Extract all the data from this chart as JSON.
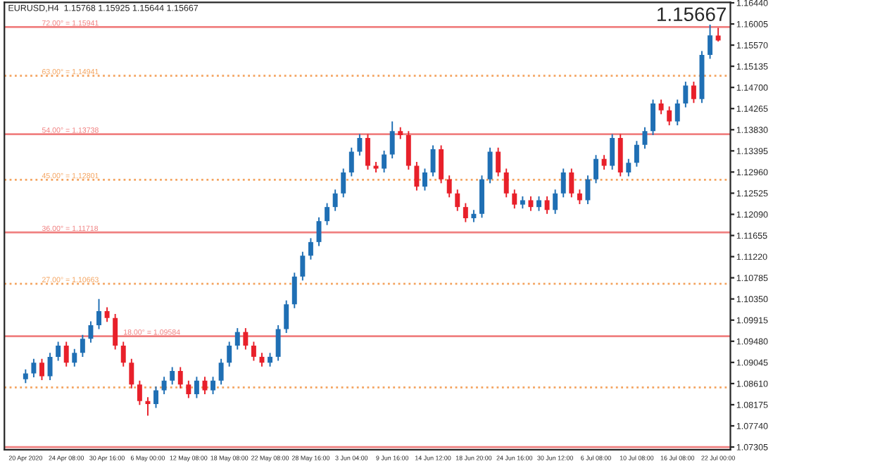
{
  "chart_data": {
    "type": "candlestick",
    "title": "EURUSD,H4  1.15768 1.15925 1.15644 1.15667",
    "annotations": [
      "1.15667"
    ],
    "categories": [
      "20 Apr 2020",
      null,
      null,
      null,
      null,
      "24 Apr 08:00",
      null,
      null,
      null,
      null,
      "30 Apr 16:00",
      null,
      null,
      null,
      null,
      "6 May 00:00",
      null,
      null,
      null,
      null,
      "12 May 08:00",
      null,
      null,
      null,
      null,
      "18 May 08:00",
      null,
      null,
      null,
      null,
      "22 May 08:00",
      null,
      null,
      null,
      null,
      "28 May 16:00",
      null,
      null,
      null,
      null,
      "3 Jun 04:00",
      null,
      null,
      null,
      null,
      "9 Jun 16:00",
      null,
      null,
      null,
      null,
      "14 Jun 12:00",
      null,
      null,
      null,
      null,
      "18 Jun 20:00",
      null,
      null,
      null,
      null,
      "24 Jun 16:00",
      null,
      null,
      null,
      null,
      "30 Jun 12:00",
      null,
      null,
      null,
      null,
      "6 Jul 08:00",
      null,
      null,
      null,
      null,
      "10 Jul 08:00",
      null,
      null,
      null,
      null,
      "16 Jul 08:00",
      null,
      null,
      null,
      null,
      "22 Jul 00:00"
    ],
    "ohlc": [
      [
        1.087,
        1.089,
        1.0862,
        1.0882
      ],
      [
        1.0882,
        1.0912,
        1.0874,
        1.0904
      ],
      [
        1.0904,
        1.0912,
        1.0868,
        1.0876
      ],
      [
        1.0876,
        1.0924,
        1.0868,
        1.0916
      ],
      [
        1.0916,
        1.0947,
        1.0908,
        1.0939
      ],
      [
        1.0939,
        1.0947,
        1.0896,
        1.0904
      ],
      [
        1.0904,
        1.0932,
        1.0896,
        1.0924
      ],
      [
        1.0924,
        1.0961,
        1.0916,
        1.0953
      ],
      [
        1.0953,
        1.0989,
        1.0945,
        1.0981
      ],
      [
        1.0981,
        1.1035,
        1.0973,
        1.101
      ],
      [
        1.101,
        1.1018,
        1.0988,
        1.0996
      ],
      [
        1.0996,
        1.1004,
        1.0931,
        1.0939
      ],
      [
        1.0939,
        1.0947,
        1.0896,
        1.0904
      ],
      [
        1.0904,
        1.0912,
        1.0851,
        1.0859
      ],
      [
        1.0859,
        1.0867,
        1.0817,
        1.0825
      ],
      [
        1.0825,
        1.0833,
        1.0795,
        1.0819
      ],
      [
        1.0819,
        1.0855,
        1.0811,
        1.0847
      ],
      [
        1.0847,
        1.0875,
        1.0839,
        1.0867
      ],
      [
        1.0867,
        1.0895,
        1.0859,
        1.0887
      ],
      [
        1.0887,
        1.0895,
        1.0851,
        1.0859
      ],
      [
        1.0859,
        1.0867,
        1.0831,
        1.0839
      ],
      [
        1.0839,
        1.0875,
        1.0831,
        1.0867
      ],
      [
        1.0867,
        1.0875,
        1.0839,
        1.0847
      ],
      [
        1.0847,
        1.0875,
        1.0839,
        1.0867
      ],
      [
        1.0867,
        1.0912,
        1.0859,
        1.0904
      ],
      [
        1.0904,
        1.0947,
        1.0896,
        1.0939
      ],
      [
        1.0939,
        1.0975,
        1.0931,
        1.0967
      ],
      [
        1.0967,
        1.0975,
        1.0931,
        1.0939
      ],
      [
        1.0939,
        1.0947,
        1.0908,
        1.0916
      ],
      [
        1.0916,
        1.0924,
        1.0896,
        1.0904
      ],
      [
        1.0904,
        1.0924,
        1.0896,
        1.0916
      ],
      [
        1.0916,
        1.0981,
        1.0908,
        1.0973
      ],
      [
        1.0973,
        1.1032,
        1.0965,
        1.1024
      ],
      [
        1.1024,
        1.1089,
        1.1016,
        1.1081
      ],
      [
        1.1081,
        1.1132,
        1.1073,
        1.1124
      ],
      [
        1.1124,
        1.116,
        1.1116,
        1.1152
      ],
      [
        1.1152,
        1.1203,
        1.1144,
        1.1195
      ],
      [
        1.1195,
        1.1232,
        1.1187,
        1.1224
      ],
      [
        1.1224,
        1.126,
        1.1216,
        1.1252
      ],
      [
        1.1252,
        1.1303,
        1.1244,
        1.1295
      ],
      [
        1.1295,
        1.1346,
        1.1287,
        1.1338
      ],
      [
        1.1338,
        1.1374,
        1.133,
        1.1366
      ],
      [
        1.1366,
        1.1374,
        1.1301,
        1.1309
      ],
      [
        1.1309,
        1.1317,
        1.1295,
        1.1303
      ],
      [
        1.1303,
        1.134,
        1.1295,
        1.1332
      ],
      [
        1.1332,
        1.14,
        1.1324,
        1.138
      ],
      [
        1.138,
        1.1388,
        1.1364,
        1.1372
      ],
      [
        1.1372,
        1.138,
        1.1301,
        1.1309
      ],
      [
        1.1309,
        1.1317,
        1.1258,
        1.1266
      ],
      [
        1.1266,
        1.1303,
        1.1258,
        1.1295
      ],
      [
        1.1295,
        1.1351,
        1.1287,
        1.1343
      ],
      [
        1.1343,
        1.1351,
        1.1273,
        1.1281
      ],
      [
        1.1281,
        1.1289,
        1.1244,
        1.1252
      ],
      [
        1.1252,
        1.126,
        1.1216,
        1.1224
      ],
      [
        1.1224,
        1.1232,
        1.1193,
        1.1201
      ],
      [
        1.1201,
        1.1218,
        1.1193,
        1.121
      ],
      [
        1.121,
        1.1289,
        1.1202,
        1.1281
      ],
      [
        1.1281,
        1.1346,
        1.1273,
        1.1338
      ],
      [
        1.1338,
        1.1346,
        1.1287,
        1.1295
      ],
      [
        1.1295,
        1.1303,
        1.1244,
        1.1252
      ],
      [
        1.1252,
        1.126,
        1.1221,
        1.1229
      ],
      [
        1.1229,
        1.1246,
        1.1221,
        1.1238
      ],
      [
        1.1238,
        1.1246,
        1.1216,
        1.1224
      ],
      [
        1.1224,
        1.1246,
        1.1216,
        1.1238
      ],
      [
        1.1238,
        1.1246,
        1.121,
        1.1218
      ],
      [
        1.1218,
        1.126,
        1.121,
        1.1252
      ],
      [
        1.1252,
        1.1303,
        1.1244,
        1.1295
      ],
      [
        1.1295,
        1.1303,
        1.1244,
        1.1252
      ],
      [
        1.1252,
        1.126,
        1.123,
        1.1238
      ],
      [
        1.1238,
        1.1289,
        1.123,
        1.1281
      ],
      [
        1.1281,
        1.1331,
        1.1273,
        1.1323
      ],
      [
        1.1323,
        1.1331,
        1.1301,
        1.1309
      ],
      [
        1.1309,
        1.1374,
        1.1301,
        1.1366
      ],
      [
        1.1366,
        1.1374,
        1.1287,
        1.1295
      ],
      [
        1.1295,
        1.1323,
        1.1287,
        1.1315
      ],
      [
        1.1315,
        1.136,
        1.1307,
        1.1352
      ],
      [
        1.1352,
        1.1388,
        1.1344,
        1.138
      ],
      [
        1.138,
        1.1445,
        1.1372,
        1.1437
      ],
      [
        1.1437,
        1.1445,
        1.1415,
        1.1423
      ],
      [
        1.1423,
        1.1431,
        1.1392,
        1.14
      ],
      [
        1.14,
        1.1445,
        1.1392,
        1.1437
      ],
      [
        1.1437,
        1.1482,
        1.1429,
        1.1474
      ],
      [
        1.1474,
        1.1482,
        1.1438,
        1.1446
      ],
      [
        1.1446,
        1.1545,
        1.1438,
        1.1537
      ],
      [
        1.1537,
        1.1599,
        1.1529,
        1.1577
      ],
      [
        1.15768,
        1.15925,
        1.15644,
        1.15667
      ]
    ],
    "colors": [
      "#1f6fb4",
      "#1f6fb4",
      "#e8202a",
      "#1f6fb4",
      "#1f6fb4",
      "#e8202a",
      "#1f6fb4",
      "#1f6fb4",
      "#1f6fb4",
      "#1f6fb4",
      "#e8202a",
      "#e8202a",
      "#e8202a",
      "#e8202a",
      "#e8202a",
      "#e8202a",
      "#1f6fb4",
      "#1f6fb4",
      "#1f6fb4",
      "#e8202a",
      "#e8202a",
      "#1f6fb4",
      "#e8202a",
      "#1f6fb4",
      "#1f6fb4",
      "#1f6fb4",
      "#1f6fb4",
      "#e8202a",
      "#e8202a",
      "#e8202a",
      "#1f6fb4",
      "#1f6fb4",
      "#1f6fb4",
      "#1f6fb4",
      "#1f6fb4",
      "#1f6fb4",
      "#1f6fb4",
      "#1f6fb4",
      "#1f6fb4",
      "#1f6fb4",
      "#1f6fb4",
      "#1f6fb4",
      "#e8202a",
      "#e8202a",
      "#1f6fb4",
      "#1f6fb4",
      "#e8202a",
      "#e8202a",
      "#e8202a",
      "#1f6fb4",
      "#1f6fb4",
      "#e8202a",
      "#e8202a",
      "#e8202a",
      "#e8202a",
      "#1f6fb4",
      "#1f6fb4",
      "#1f6fb4",
      "#e8202a",
      "#e8202a",
      "#e8202a",
      "#1f6fb4",
      "#e8202a",
      "#1f6fb4",
      "#e8202a",
      "#1f6fb4",
      "#1f6fb4",
      "#e8202a",
      "#e8202a",
      "#1f6fb4",
      "#1f6fb4",
      "#e8202a",
      "#1f6fb4",
      "#e8202a",
      "#1f6fb4",
      "#1f6fb4",
      "#1f6fb4",
      "#1f6fb4",
      "#e8202a",
      "#e8202a",
      "#1f6fb4",
      "#1f6fb4",
      "#e8202a",
      "#1f6fb4",
      "#1f6fb4",
      "#e8202a"
    ],
    "ylim": [
      1.0725,
      1.1645
    ],
    "yticks": [
      1.07305,
      {
        "value": 1.0774,
        "label": "1.07740"
      },
      1.08175,
      {
        "value": 1.0861,
        "label": "1.08610"
      },
      1.09045,
      {
        "value": 1.0948,
        "label": "1.09480"
      },
      1.09915,
      {
        "value": 1.1035,
        "label": "1.10350"
      },
      1.10785,
      {
        "value": 1.1122,
        "label": "1.11220"
      },
      1.11655,
      {
        "value": 1.1209,
        "label": "1.12090"
      },
      1.12525,
      {
        "value": 1.1296,
        "label": "1.12960"
      },
      1.13395,
      {
        "value": 1.1383,
        "label": "1.13830"
      },
      1.14265,
      {
        "value": 1.147,
        "label": "1.14700"
      },
      1.15135,
      {
        "value": 1.1557,
        "label": "1.15570"
      },
      1.16005,
      {
        "value": 1.1644,
        "label": "1.16440"
      }
    ],
    "ref_lines": [
      {
        "axis": "y",
        "value": 1.15941,
        "label": "72.00° = 1.15941",
        "color": "#f08080",
        "line_style": "solid"
      },
      {
        "axis": "y",
        "value": 1.14941,
        "label": "63.00° = 1.14941",
        "color": "#f4a460",
        "line_style": "dotted"
      },
      {
        "axis": "y",
        "value": 1.13738,
        "label": "54.00° = 1.13738",
        "color": "#f08080",
        "line_style": "solid"
      },
      {
        "axis": "y",
        "value": 1.12801,
        "label": "45.00° = 1.12801",
        "color": "#f4a460",
        "line_style": "dotted"
      },
      {
        "axis": "y",
        "value": 1.11718,
        "label": "36.00° = 1.11718",
        "color": "#f08080",
        "line_style": "solid"
      },
      {
        "axis": "y",
        "value": 1.10663,
        "label": "27.00° = 1.10663",
        "color": "#f4a460",
        "line_style": "dotted"
      },
      {
        "axis": "y",
        "value": 1.09584,
        "label": "18.00° = 1.09584",
        "color": "#f08080",
        "line_style": "solid"
      },
      {
        "axis": "y",
        "value": 1.0853,
        "color": "#f4a460",
        "line_style": "dotted"
      },
      {
        "axis": "y",
        "value": 1.07305,
        "color": "#f08080",
        "line_style": "solid"
      }
    ],
    "grid": false
  }
}
